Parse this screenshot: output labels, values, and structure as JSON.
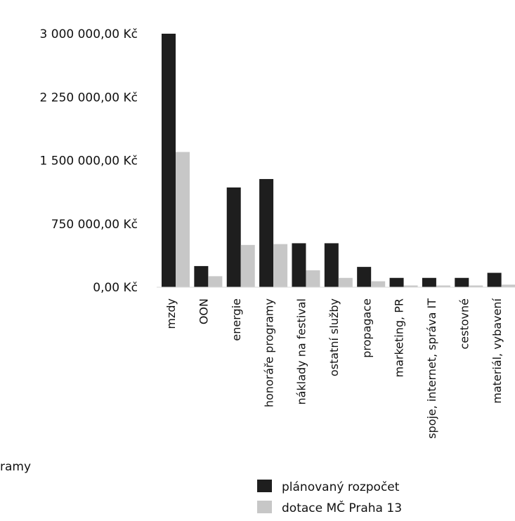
{
  "chart_data": {
    "type": "bar",
    "categories": [
      "mzdy",
      "OON",
      "energie",
      "honoráře programy",
      "náklady na festival",
      "ostatní služby",
      "propagace",
      "marketing, PR",
      "spoje, internet, správa IT",
      "cestovné",
      "materiál, vybavení"
    ],
    "y_tick_labels": [
      "0,00 Kč",
      "750 000,00 Kč",
      "1 500 000,00 Kč",
      "2 250 000,00 Kč",
      "3 000 000,00 Kč"
    ],
    "y_ticks": [
      0,
      750000,
      1500000,
      2250000,
      3000000
    ],
    "ylim": [
      0,
      3000000
    ],
    "series": [
      {
        "name": "plánovaný rozpočet",
        "color": "#1e1e1e",
        "values": [
          3000000,
          250000,
          1180000,
          1280000,
          520000,
          520000,
          240000,
          110000,
          110000,
          110000,
          170000
        ]
      },
      {
        "name": "dotace MČ Praha 13",
        "color": "#c7c7c7",
        "values": [
          1600000,
          130000,
          500000,
          510000,
          200000,
          110000,
          70000,
          20000,
          20000,
          20000,
          30000
        ]
      }
    ],
    "legend_position": "bottom-right",
    "grid": false,
    "stray_text": "ramy"
  }
}
